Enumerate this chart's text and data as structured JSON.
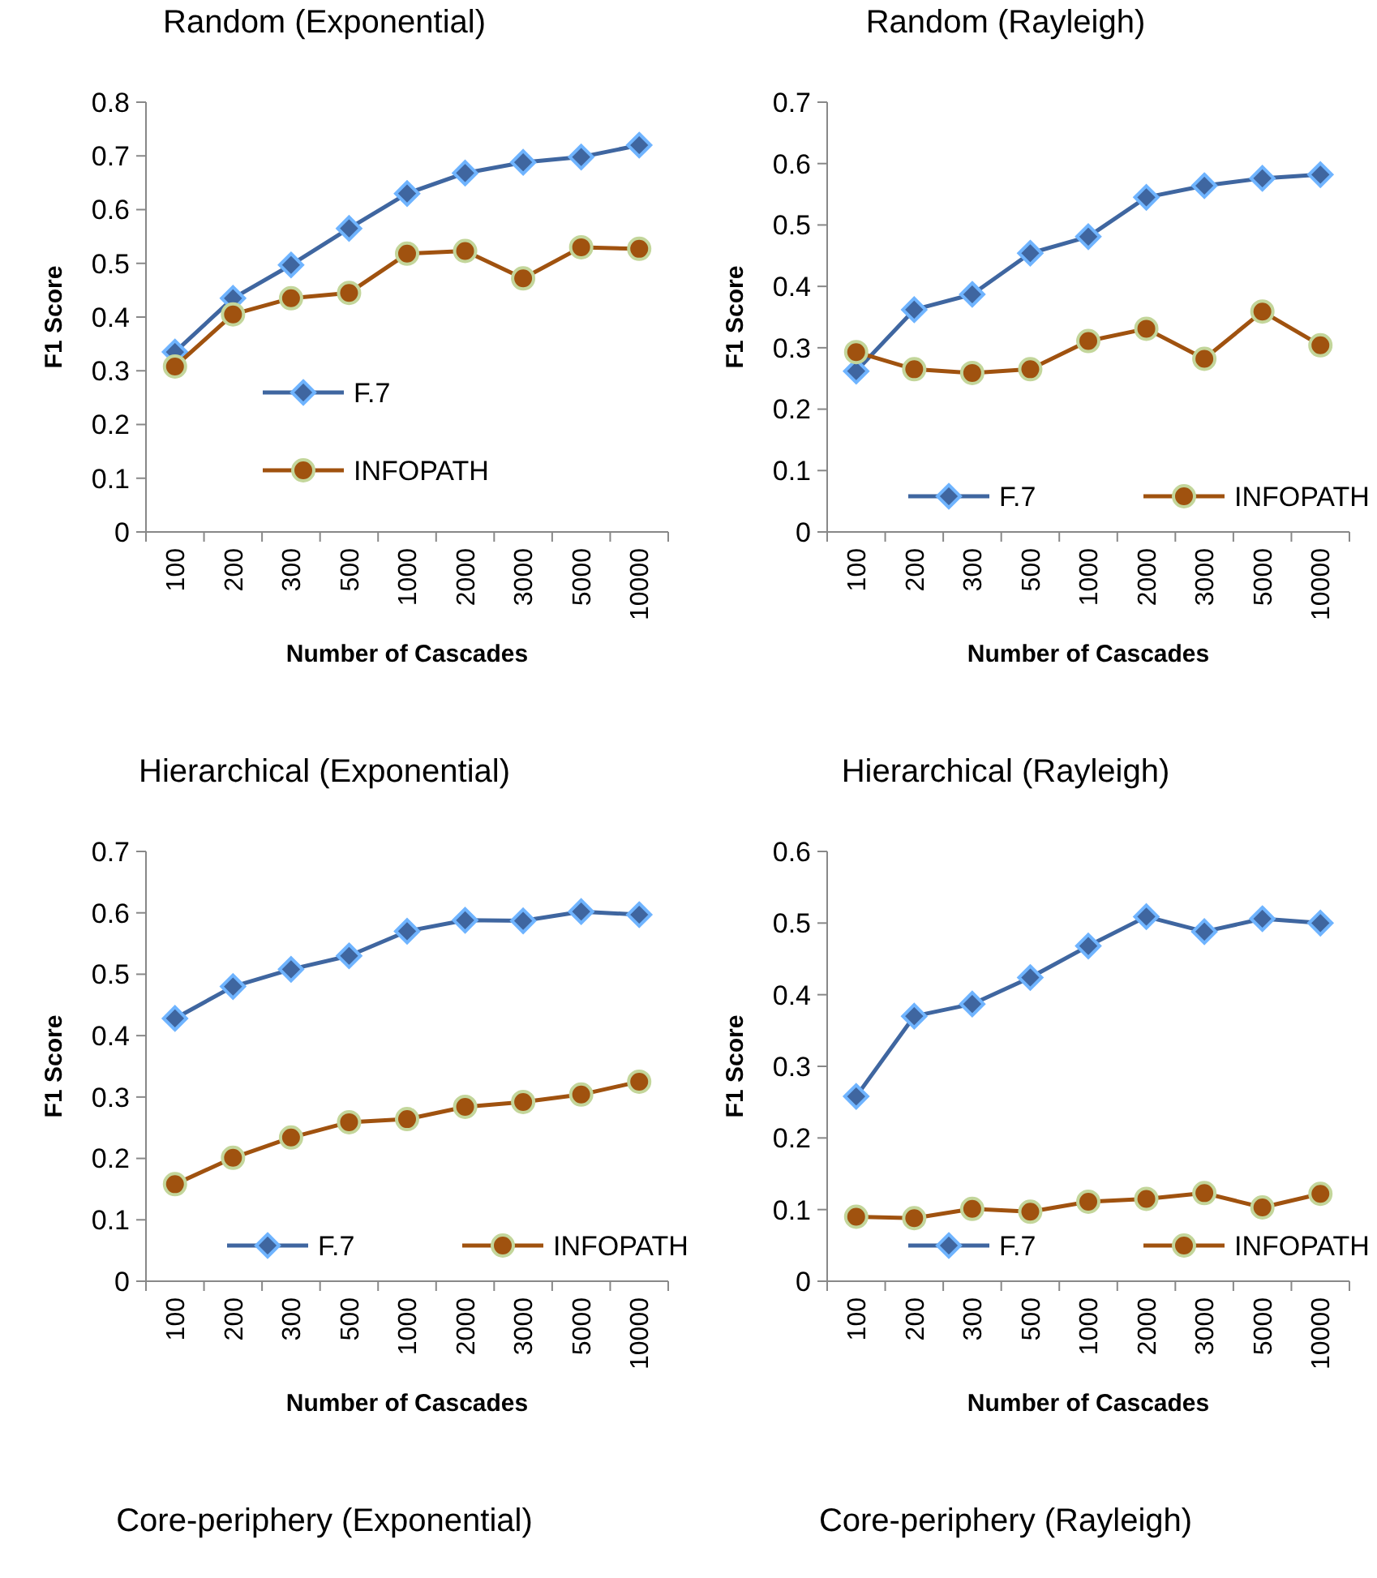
{
  "chart_data": [
    {
      "type": "line",
      "title": "Random (Exponential)",
      "xlabel": "Number of Cascades",
      "ylabel": "F1 Score",
      "categories": [
        "100",
        "200",
        "300",
        "500",
        "1000",
        "2000",
        "3000",
        "5000",
        "10000"
      ],
      "ylim": [
        0,
        0.8
      ],
      "yticks": [
        0,
        0.1,
        0.2,
        0.3,
        0.4,
        0.5,
        0.6,
        0.7,
        0.8
      ],
      "legend": "center",
      "line_style": "solid",
      "series": [
        {
          "name": "F.7",
          "color": "#3f66a0",
          "marker": "diamond",
          "values": [
            0.335,
            0.435,
            0.497,
            0.565,
            0.63,
            0.668,
            0.688,
            0.698,
            0.72
          ]
        },
        {
          "name": "INFOPATH",
          "color": "#a0520f",
          "marker": "circle",
          "values": [
            0.308,
            0.405,
            0.435,
            0.445,
            0.518,
            0.523,
            0.472,
            0.53,
            0.527
          ]
        }
      ]
    },
    {
      "type": "line",
      "title": "Random (Rayleigh)",
      "xlabel": "Number of Cascades",
      "ylabel": "F1 Score",
      "categories": [
        "100",
        "200",
        "300",
        "500",
        "1000",
        "2000",
        "3000",
        "5000",
        "10000"
      ],
      "ylim": [
        0,
        0.7
      ],
      "yticks": [
        0,
        0.1,
        0.2,
        0.3,
        0.4,
        0.5,
        0.6,
        0.7
      ],
      "legend": "bottom",
      "line_style": "solid",
      "series": [
        {
          "name": "F.7",
          "color": "#3f66a0",
          "marker": "diamond",
          "values": [
            0.262,
            0.362,
            0.387,
            0.454,
            0.481,
            0.545,
            0.564,
            0.576,
            0.582
          ]
        },
        {
          "name": "INFOPATH",
          "color": "#a0520f",
          "marker": "circle",
          "values": [
            0.293,
            0.265,
            0.259,
            0.265,
            0.311,
            0.331,
            0.282,
            0.359,
            0.304
          ]
        }
      ]
    },
    {
      "type": "line",
      "title": "Hierarchical (Exponential)",
      "xlabel": "Number of Cascades",
      "ylabel": "F1 Score",
      "categories": [
        "100",
        "200",
        "300",
        "500",
        "1000",
        "2000",
        "3000",
        "5000",
        "10000"
      ],
      "ylim": [
        0,
        0.7
      ],
      "yticks": [
        0,
        0.1,
        0.2,
        0.3,
        0.4,
        0.5,
        0.6,
        0.7
      ],
      "legend": "bottom",
      "line_style": "solid",
      "series": [
        {
          "name": "F.7",
          "color": "#3f66a0",
          "marker": "diamond",
          "values": [
            0.428,
            0.48,
            0.508,
            0.53,
            0.57,
            0.588,
            0.587,
            0.602,
            0.597
          ]
        },
        {
          "name": "INFOPATH",
          "color": "#a0520f",
          "marker": "circle",
          "values": [
            0.158,
            0.201,
            0.234,
            0.259,
            0.264,
            0.284,
            0.292,
            0.304,
            0.325
          ]
        }
      ]
    },
    {
      "type": "line",
      "title": "Hierarchical (Rayleigh)",
      "xlabel": "Number of Cascades",
      "ylabel": "F1 Score",
      "categories": [
        "100",
        "200",
        "300",
        "500",
        "1000",
        "2000",
        "3000",
        "5000",
        "10000"
      ],
      "ylim": [
        0,
        0.6
      ],
      "yticks": [
        0,
        0.1,
        0.2,
        0.3,
        0.4,
        0.5,
        0.6
      ],
      "legend": "bottom",
      "line_style": "solid",
      "series": [
        {
          "name": "F.7",
          "color": "#3f66a0",
          "marker": "diamond",
          "values": [
            0.258,
            0.37,
            0.387,
            0.424,
            0.468,
            0.509,
            0.488,
            0.506,
            0.5
          ]
        },
        {
          "name": "INFOPATH",
          "color": "#a0520f",
          "marker": "circle",
          "values": [
            0.09,
            0.088,
            0.101,
            0.097,
            0.111,
            0.115,
            0.123,
            0.103,
            0.122
          ]
        }
      ]
    },
    {
      "type": "other",
      "title": "Core-periphery (Exponential)"
    },
    {
      "type": "other",
      "title": "Core-periphery (Rayleigh)"
    }
  ]
}
